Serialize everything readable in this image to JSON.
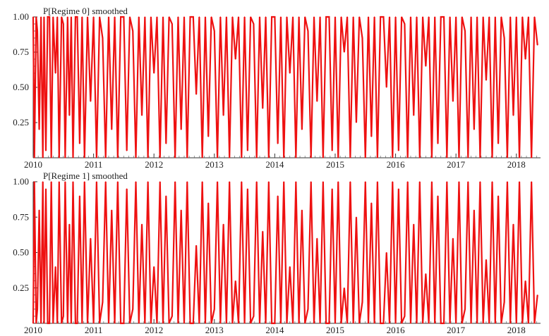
{
  "chart_data": [
    {
      "type": "line",
      "title": "P[Regime 0] smoothed",
      "xlabel": "",
      "ylabel": "",
      "xlim": [
        2010,
        2018.4
      ],
      "ylim": [
        0,
        1
      ],
      "x_ticks": [
        "2010",
        "2011",
        "2012",
        "2013",
        "2014",
        "2015",
        "2016",
        "2017",
        "2018"
      ],
      "y_ticks": [
        "0.25",
        "0.50",
        "0.75",
        "1.00"
      ],
      "grid": false,
      "color": "#ee1111",
      "series": [
        {
          "x": [
            2010.0,
            2010.02,
            2010.05,
            2010.07,
            2010.1,
            2010.13,
            2010.16,
            2010.18,
            2010.21,
            2010.24,
            2010.27,
            2010.3,
            2010.33,
            2010.37,
            2010.4,
            2010.43,
            2010.47,
            2010.5,
            2010.53,
            2010.57,
            2010.6,
            2010.63,
            2010.66,
            2010.7,
            2010.73,
            2010.77,
            2010.81,
            2010.85,
            2010.9,
            2010.95,
            2011.0,
            2011.05,
            2011.1,
            2011.15,
            2011.2,
            2011.25,
            2011.3,
            2011.35,
            2011.4,
            2011.45,
            2011.5,
            2011.55,
            2011.6,
            2011.65,
            2011.7,
            2011.75,
            2011.8,
            2011.85,
            2011.9,
            2011.95,
            2012.0,
            2012.05,
            2012.1,
            2012.15,
            2012.2,
            2012.25,
            2012.3,
            2012.35,
            2012.4,
            2012.45,
            2012.5,
            2012.55,
            2012.6,
            2012.65,
            2012.7,
            2012.75,
            2012.8,
            2012.85,
            2012.9,
            2012.95,
            2013.0,
            2013.05,
            2013.1,
            2013.15,
            2013.2,
            2013.25,
            2013.3,
            2013.35,
            2013.4,
            2013.45,
            2013.5,
            2013.55,
            2013.6,
            2013.65,
            2013.7,
            2013.75,
            2013.8,
            2013.85,
            2013.9,
            2013.95,
            2014.0,
            2014.05,
            2014.1,
            2014.15,
            2014.2,
            2014.25,
            2014.3,
            2014.35,
            2014.4,
            2014.45,
            2014.5,
            2014.55,
            2014.6,
            2014.65,
            2014.7,
            2014.75,
            2014.8,
            2014.85,
            2014.9,
            2014.95,
            2015.0,
            2015.05,
            2015.1,
            2015.15,
            2015.2,
            2015.25,
            2015.3,
            2015.35,
            2015.4,
            2015.45,
            2015.5,
            2015.55,
            2015.6,
            2015.65,
            2015.7,
            2015.75,
            2015.8,
            2015.85,
            2015.9,
            2015.95,
            2016.0,
            2016.05,
            2016.1,
            2016.15,
            2016.2,
            2016.25,
            2016.3,
            2016.35,
            2016.4,
            2016.45,
            2016.5,
            2016.55,
            2016.6,
            2016.65,
            2016.7,
            2016.75,
            2016.8,
            2016.85,
            2016.9,
            2016.95,
            2017.0,
            2017.05,
            2017.1,
            2017.15,
            2017.2,
            2017.25,
            2017.3,
            2017.35,
            2017.4,
            2017.45,
            2017.5,
            2017.55,
            2017.6,
            2017.65,
            2017.7,
            2017.75,
            2017.8,
            2017.85,
            2017.9,
            2017.95,
            2018.0,
            2018.05,
            2018.1,
            2018.15,
            2018.2,
            2018.25,
            2018.3,
            2018.35
          ],
          "values": [
            1,
            0,
            1,
            0.9,
            0.2,
            1,
            0,
            1,
            0.05,
            1,
            1,
            0,
            1,
            0.6,
            1,
            0,
            1,
            0.95,
            0,
            1,
            0.3,
            1,
            0,
            1,
            1,
            0.1,
            1,
            0,
            1,
            0.4,
            1,
            0,
            1,
            0.85,
            0,
            1,
            0.2,
            1,
            0,
            1,
            1,
            0.05,
            1,
            0.9,
            0,
            1,
            0.3,
            1,
            0,
            1,
            0.6,
            1,
            0,
            1,
            0.1,
            1,
            0.95,
            0,
            1,
            0.2,
            1,
            0,
            1,
            1,
            0.45,
            1,
            0,
            1,
            0.15,
            1,
            0.9,
            0,
            1,
            0.3,
            1,
            0,
            1,
            0.7,
            1,
            0,
            1,
            0.05,
            1,
            0.95,
            0,
            1,
            0.35,
            1,
            0,
            1,
            1,
            0.1,
            1,
            0,
            1,
            0.6,
            1,
            0,
            1,
            0.2,
            1,
            0.9,
            0,
            1,
            0.4,
            1,
            0,
            1,
            1,
            0.05,
            1,
            0,
            1,
            0.75,
            1,
            0,
            1,
            0.25,
            1,
            0.85,
            0,
            1,
            0.15,
            1,
            0,
            1,
            1,
            0.5,
            1,
            0,
            1,
            0.05,
            1,
            0.95,
            0,
            1,
            0.3,
            1,
            0,
            1,
            0.65,
            1,
            0,
            1,
            0.1,
            1,
            1,
            0,
            1,
            0.4,
            1,
            0,
            1,
            0.9,
            0,
            1,
            0.2,
            1,
            0,
            1,
            0.55,
            1,
            0,
            1,
            0.1,
            1,
            0.85,
            0,
            1,
            0.3,
            1,
            0,
            1,
            0.7,
            1,
            0,
            1,
            0.8
          ]
        }
      ]
    },
    {
      "type": "line",
      "title": "P[Regime 1] smoothed",
      "xlabel": "",
      "ylabel": "",
      "xlim": [
        2010,
        2018.4
      ],
      "ylim": [
        0,
        1
      ],
      "x_ticks": [
        "2010",
        "2011",
        "2012",
        "2013",
        "2014",
        "2015",
        "2016",
        "2017",
        "2018"
      ],
      "y_ticks": [
        "0.25",
        "0.50",
        "0.75",
        "1.00"
      ],
      "grid": false,
      "color": "#ee1111",
      "series": [
        {
          "x": [
            2010.0,
            2010.02,
            2010.05,
            2010.07,
            2010.1,
            2010.13,
            2010.16,
            2010.18,
            2010.21,
            2010.24,
            2010.27,
            2010.3,
            2010.33,
            2010.37,
            2010.4,
            2010.43,
            2010.47,
            2010.5,
            2010.53,
            2010.57,
            2010.6,
            2010.63,
            2010.66,
            2010.7,
            2010.73,
            2010.77,
            2010.81,
            2010.85,
            2010.9,
            2010.95,
            2011.0,
            2011.05,
            2011.1,
            2011.15,
            2011.2,
            2011.25,
            2011.3,
            2011.35,
            2011.4,
            2011.45,
            2011.5,
            2011.55,
            2011.6,
            2011.65,
            2011.7,
            2011.75,
            2011.8,
            2011.85,
            2011.9,
            2011.95,
            2012.0,
            2012.05,
            2012.1,
            2012.15,
            2012.2,
            2012.25,
            2012.3,
            2012.35,
            2012.4,
            2012.45,
            2012.5,
            2012.55,
            2012.6,
            2012.65,
            2012.7,
            2012.75,
            2012.8,
            2012.85,
            2012.9,
            2012.95,
            2013.0,
            2013.05,
            2013.1,
            2013.15,
            2013.2,
            2013.25,
            2013.3,
            2013.35,
            2013.4,
            2013.45,
            2013.5,
            2013.55,
            2013.6,
            2013.65,
            2013.7,
            2013.75,
            2013.8,
            2013.85,
            2013.9,
            2013.95,
            2014.0,
            2014.05,
            2014.1,
            2014.15,
            2014.2,
            2014.25,
            2014.3,
            2014.35,
            2014.4,
            2014.45,
            2014.5,
            2014.55,
            2014.6,
            2014.65,
            2014.7,
            2014.75,
            2014.8,
            2014.85,
            2014.9,
            2014.95,
            2015.0,
            2015.05,
            2015.1,
            2015.15,
            2015.2,
            2015.25,
            2015.3,
            2015.35,
            2015.4,
            2015.45,
            2015.5,
            2015.55,
            2015.6,
            2015.65,
            2015.7,
            2015.75,
            2015.8,
            2015.85,
            2015.9,
            2015.95,
            2016.0,
            2016.05,
            2016.1,
            2016.15,
            2016.2,
            2016.25,
            2016.3,
            2016.35,
            2016.4,
            2016.45,
            2016.5,
            2016.55,
            2016.6,
            2016.65,
            2016.7,
            2016.75,
            2016.8,
            2016.85,
            2016.9,
            2016.95,
            2017.0,
            2017.05,
            2017.1,
            2017.15,
            2017.2,
            2017.25,
            2017.3,
            2017.35,
            2017.4,
            2017.45,
            2017.5,
            2017.55,
            2017.6,
            2017.65,
            2017.7,
            2017.75,
            2017.8,
            2017.85,
            2017.9,
            2017.95,
            2018.0,
            2018.05,
            2018.1,
            2018.15,
            2018.2,
            2018.25,
            2018.3,
            2018.35
          ],
          "values": [
            0,
            1,
            0,
            0.1,
            0.8,
            0,
            1,
            0,
            0.95,
            0,
            0,
            1,
            0,
            0.4,
            0,
            1,
            0,
            0.05,
            1,
            0,
            0.7,
            0,
            1,
            0,
            0,
            0.9,
            0,
            1,
            0,
            0.6,
            0,
            1,
            0,
            0.15,
            1,
            0,
            0.8,
            0,
            1,
            0,
            0,
            0.95,
            0,
            0.1,
            1,
            0,
            0.7,
            0,
            1,
            0,
            0.4,
            0,
            1,
            0,
            0.9,
            0,
            0.05,
            1,
            0,
            0.8,
            0,
            1,
            0,
            0,
            0.55,
            0,
            1,
            0,
            0.85,
            0,
            0.1,
            1,
            0,
            0.7,
            0,
            1,
            0,
            0.3,
            0,
            1,
            0,
            0.95,
            0,
            0.05,
            1,
            0,
            0.65,
            0,
            1,
            0,
            0,
            0.9,
            0,
            1,
            0,
            0.4,
            0,
            1,
            0,
            0.8,
            0,
            0.1,
            1,
            0,
            0.6,
            0,
            1,
            0,
            0,
            0.95,
            0,
            1,
            0,
            0.25,
            0,
            1,
            0,
            0.75,
            0,
            0.15,
            1,
            0,
            0.85,
            0,
            1,
            0,
            0,
            0.5,
            0,
            1,
            0,
            0.95,
            0,
            0.05,
            1,
            0,
            0.7,
            0,
            1,
            0,
            0.35,
            0,
            1,
            0,
            0.9,
            0,
            0,
            1,
            0,
            0.6,
            0,
            1,
            0,
            0.1,
            1,
            0,
            0.8,
            0,
            1,
            0,
            0.45,
            0,
            1,
            0,
            0.9,
            0,
            0.15,
            1,
            0,
            0.7,
            0,
            1,
            0,
            0.3,
            0,
            1,
            0,
            0.2
          ]
        }
      ]
    }
  ]
}
